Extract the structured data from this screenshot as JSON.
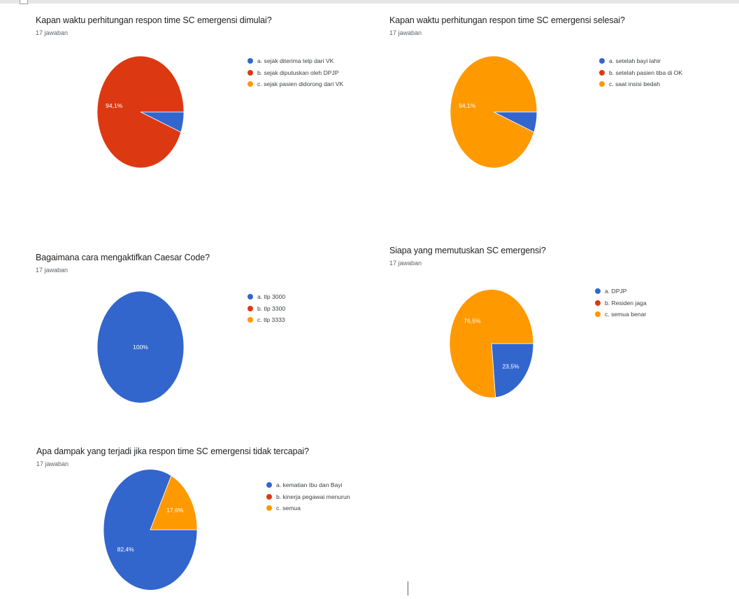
{
  "charts": [
    {
      "title": "Kapan waktu perhitungan respon time SC emergensi dimulai?",
      "subtitle": "17 jawaban",
      "chart_data": {
        "type": "pie",
        "labels": [
          "a. sejak diterima telp dari VK",
          "b. sejak diputuskan oleh DPJP",
          "c. sejak pasien didorong dari VK"
        ],
        "values": [
          5.9,
          94.1,
          0
        ],
        "colors": [
          "#3366cc",
          "#dc3912",
          "#ff9900"
        ],
        "data_labels": [
          "",
          "94,1%",
          ""
        ],
        "legend_position": "right"
      }
    },
    {
      "title": "Kapan waktu perhitungan respon time SC emergensi selesai?",
      "subtitle": "17 jawaban",
      "chart_data": {
        "type": "pie",
        "labels": [
          "a. setelah bayi lahir",
          "b. setelah pasien tiba di OK",
          "c. saat insisi bedah"
        ],
        "values": [
          5.9,
          0,
          94.1
        ],
        "colors": [
          "#3366cc",
          "#dc3912",
          "#ff9900"
        ],
        "data_labels": [
          "",
          "",
          "94,1%"
        ],
        "legend_position": "right"
      }
    },
    {
      "title": "Bagaimana cara mengaktifkan Caesar Code?",
      "subtitle": "17 jawaban",
      "chart_data": {
        "type": "pie",
        "labels": [
          "a. tlp 3000",
          "b. tlp 3300",
          "c. tlp 3333"
        ],
        "values": [
          100,
          0,
          0
        ],
        "colors": [
          "#3366cc",
          "#dc3912",
          "#ff9900"
        ],
        "data_labels": [
          "100%",
          "",
          ""
        ],
        "legend_position": "right"
      }
    },
    {
      "title": "Siapa yang memutuskan SC emergensi?",
      "subtitle": "17 jawaban",
      "chart_data": {
        "type": "pie",
        "labels": [
          "a. DPJP",
          "b. Residen jaga",
          "c. semua benar"
        ],
        "values": [
          23.5,
          0,
          76.5
        ],
        "colors": [
          "#3366cc",
          "#dc3912",
          "#ff9900"
        ],
        "data_labels": [
          "23,5%",
          "",
          "76,5%"
        ],
        "legend_position": "right"
      }
    },
    {
      "title": "Apa dampak yang terjadi jika respon time SC emergensi tidak tercapai?",
      "subtitle": "17 jawaban",
      "chart_data": {
        "type": "pie",
        "labels": [
          "a. kematian Ibu dan Bayi",
          "b. kinerja pegawai menurun",
          "c. semua"
        ],
        "values": [
          82.4,
          0,
          17.6
        ],
        "colors": [
          "#3366cc",
          "#dc3912",
          "#ff9900"
        ],
        "data_labels": [
          "82,4%",
          "",
          "17,6%"
        ],
        "legend_position": "right"
      }
    }
  ]
}
